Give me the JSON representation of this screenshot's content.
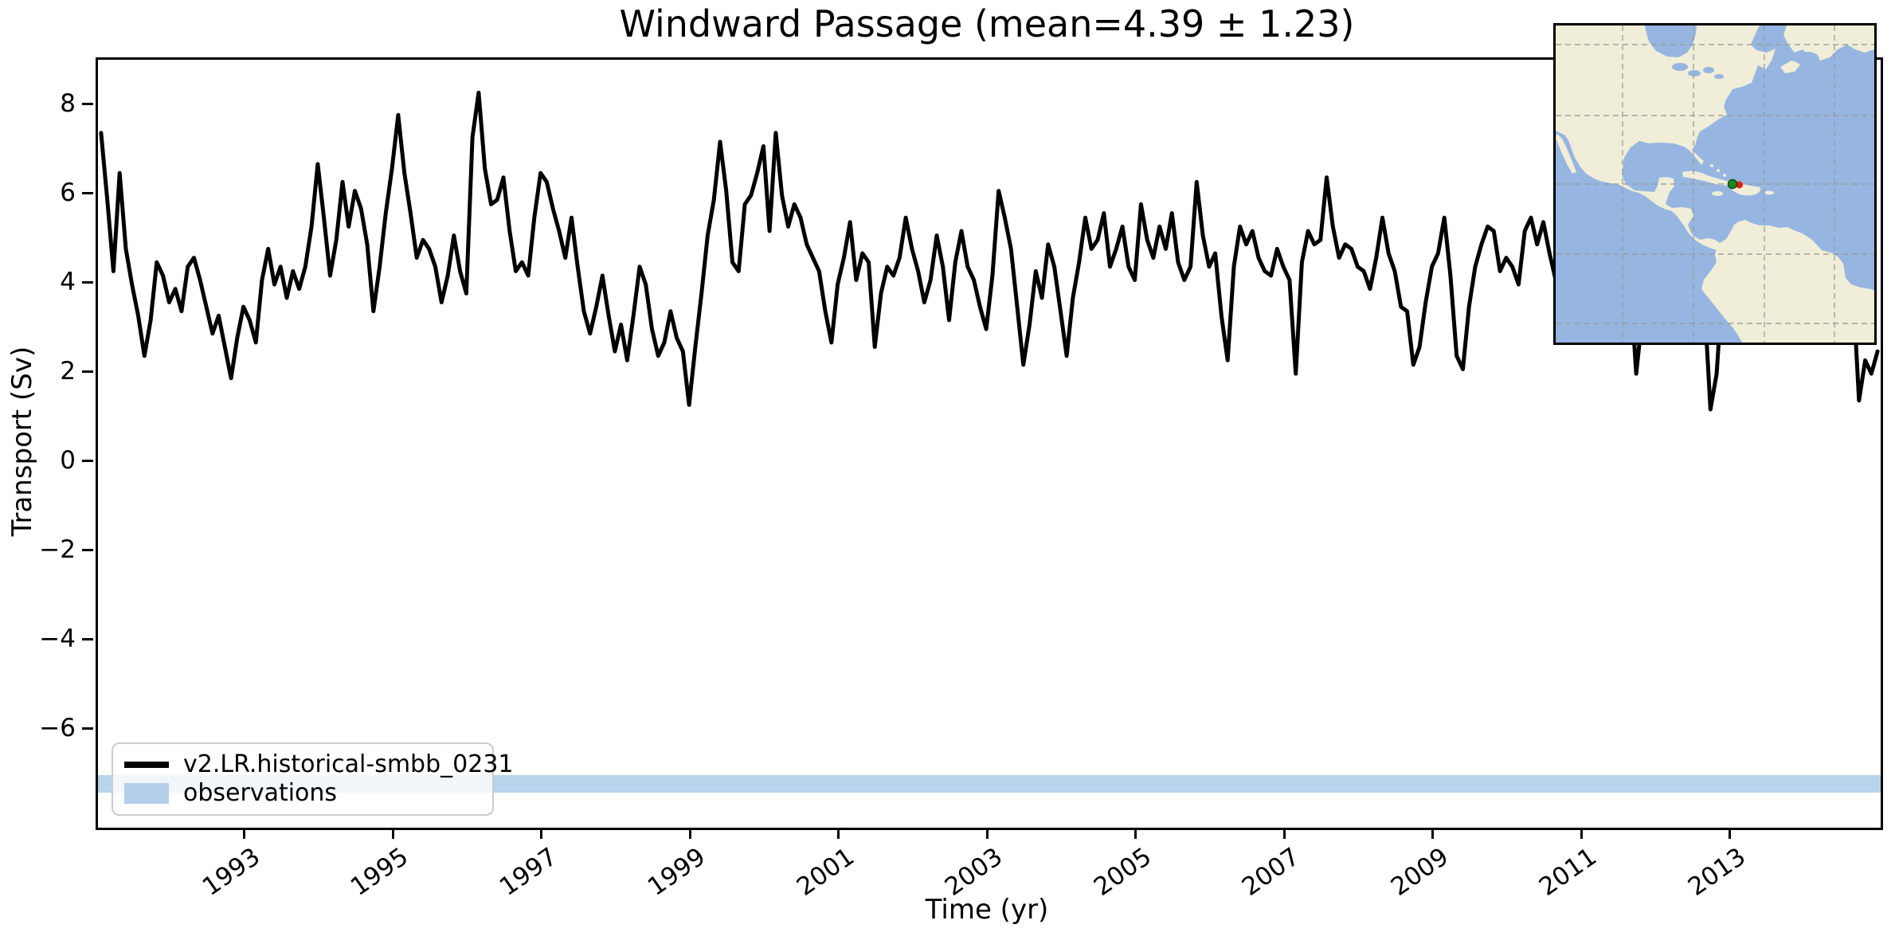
{
  "figure": {
    "title": "Windward Passage (mean=4.39 ± 1.23)"
  },
  "chart_data": {
    "type": "line",
    "title": "Windward Passage (mean=4.39 ± 1.23)",
    "xlabel": "Time (yr)",
    "ylabel": "Transport (Sv)",
    "xlim": [
      1991.0,
      2015.0
    ],
    "ylim": [
      -8.18,
      9.04
    ],
    "grid": "off",
    "legend_position": "lower left",
    "mean": 4.39,
    "std": 1.23,
    "x_start": 1991.0417,
    "x_step": 0.0833333,
    "series": [
      {
        "name": "v2.LR.historical-smbb_0231",
        "color": "#000000",
        "monthly_values": [
          7.4,
          5.9,
          4.3,
          6.5,
          4.8,
          4.0,
          3.3,
          2.4,
          3.2,
          4.5,
          4.2,
          3.6,
          3.9,
          3.4,
          4.4,
          4.6,
          4.1,
          3.5,
          2.9,
          3.3,
          2.6,
          1.9,
          2.8,
          3.5,
          3.2,
          2.7,
          4.1,
          4.8,
          4.0,
          4.4,
          3.7,
          4.3,
          3.9,
          4.4,
          5.3,
          6.7,
          5.5,
          4.2,
          5.0,
          6.3,
          5.3,
          6.1,
          5.7,
          4.9,
          3.4,
          4.4,
          5.6,
          6.6,
          7.8,
          6.5,
          5.6,
          4.6,
          5.0,
          4.8,
          4.4,
          3.6,
          4.2,
          5.1,
          4.3,
          3.8,
          7.3,
          8.3,
          6.6,
          5.8,
          5.9,
          6.4,
          5.2,
          4.3,
          4.5,
          4.2,
          5.5,
          6.5,
          6.3,
          5.7,
          5.2,
          4.6,
          5.5,
          4.4,
          3.4,
          2.9,
          3.5,
          4.2,
          3.3,
          2.5,
          3.1,
          2.3,
          3.3,
          4.4,
          4.0,
          3.0,
          2.4,
          2.7,
          3.4,
          2.8,
          2.5,
          1.3,
          2.6,
          3.8,
          5.1,
          5.9,
          7.2,
          6.1,
          4.5,
          4.3,
          5.8,
          6.0,
          6.5,
          7.1,
          5.2,
          7.4,
          6.0,
          5.3,
          5.8,
          5.5,
          4.9,
          4.6,
          4.3,
          3.4,
          2.7,
          4.0,
          4.6,
          5.4,
          4.1,
          4.7,
          4.5,
          2.6,
          3.8,
          4.4,
          4.2,
          4.6,
          5.5,
          4.8,
          4.3,
          3.6,
          4.1,
          5.1,
          4.4,
          3.2,
          4.5,
          5.2,
          4.4,
          4.1,
          3.5,
          3.0,
          4.2,
          6.1,
          5.5,
          4.8,
          3.5,
          2.2,
          3.1,
          4.3,
          3.7,
          4.9,
          4.4,
          3.4,
          2.4,
          3.7,
          4.5,
          5.5,
          4.8,
          5.0,
          5.6,
          4.4,
          4.8,
          5.3,
          4.4,
          4.1,
          5.8,
          5.0,
          4.6,
          5.3,
          4.8,
          5.6,
          4.5,
          4.1,
          4.4,
          6.3,
          5.1,
          4.4,
          4.7,
          3.3,
          2.3,
          4.4,
          5.3,
          4.9,
          5.2,
          4.6,
          4.3,
          4.2,
          4.8,
          4.4,
          4.1,
          2.0,
          4.5,
          5.2,
          4.9,
          5.0,
          6.4,
          5.3,
          4.6,
          4.9,
          4.8,
          4.4,
          4.3,
          3.9,
          4.6,
          5.5,
          4.7,
          4.3,
          3.5,
          3.4,
          2.2,
          2.6,
          3.6,
          4.4,
          4.7,
          5.5,
          4.2,
          2.4,
          2.1,
          3.5,
          4.4,
          4.9,
          5.3,
          5.2,
          4.3,
          4.6,
          4.4,
          4.0,
          5.2,
          5.5,
          4.9,
          5.4,
          4.7,
          4.1,
          3.8,
          4.4,
          4.6,
          4.2,
          4.5,
          4.3,
          4.7,
          5.0,
          4.4,
          4.1,
          3.9,
          4.2,
          2.0,
          3.3,
          4.4,
          4.6,
          4.3,
          4.5,
          4.8,
          4.4,
          4.1,
          4.4,
          4.0,
          3.7,
          1.2,
          2.0,
          4.1,
          4.5,
          4.4,
          4.7,
          5.0,
          4.6,
          4.3,
          4.5,
          4.8,
          4.4,
          4.6,
          4.9,
          4.5,
          4.2,
          4.0,
          4.6,
          4.4,
          4.7,
          5.0,
          4.6,
          4.3,
          4.0,
          1.4,
          2.3,
          2.0,
          2.5
        ]
      }
    ],
    "observations_band": {
      "label": "observations",
      "lo": -7.4,
      "hi": -7.0,
      "color": "#b9d3ea"
    },
    "xticks": {
      "values": [
        1993,
        1995,
        1997,
        1999,
        2001,
        2003,
        2005,
        2007,
        2009,
        2011,
        2013
      ],
      "labels": [
        "1993",
        "1995",
        "1997",
        "1999",
        "2001",
        "2003",
        "2005",
        "2007",
        "2009",
        "2011",
        "2013"
      ],
      "rotation_deg": 35
    },
    "yticks": {
      "values": [
        8,
        6,
        4,
        2,
        0,
        -2,
        -4,
        -6
      ],
      "labels": [
        "8",
        "6",
        "4",
        "2",
        "0",
        "−2",
        "−4",
        "−6"
      ]
    }
  },
  "legend": {
    "items": [
      {
        "label": "v2.LR.historical-smbb_0231",
        "swatch": "line",
        "color": "#000000"
      },
      {
        "label": "observations",
        "swatch": "patch",
        "color": "#b3cfe9"
      }
    ]
  },
  "inset_map": {
    "region": "Americas with Windward Passage marker",
    "ocean_color": "#96b6e1",
    "land_color": "#f0edd8",
    "gridline_color": "#9a9a9a",
    "marker_green_color": "#1f8b1f",
    "marker_red_color": "#e41b10"
  }
}
